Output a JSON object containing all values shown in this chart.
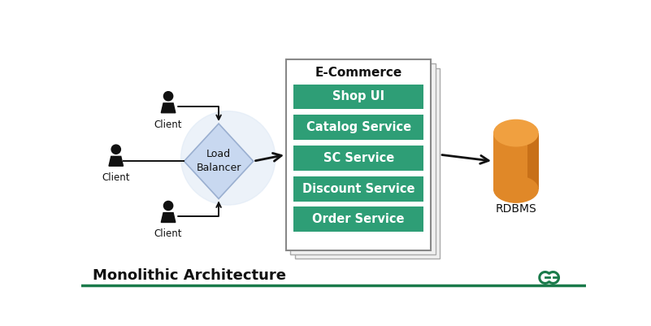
{
  "bg_color": "#ffffff",
  "service_bg": "#2e9e76",
  "lb_color": "#c8d8f0",
  "lb_edge": "#9aafd0",
  "rdbms_top": "#f0a040",
  "rdbms_body": "#e08828",
  "rdbms_side": "#c87018",
  "arrow_color": "#111111",
  "text_dark": "#111111",
  "text_white": "#ffffff",
  "services": [
    "Shop UI",
    "Catalog Service",
    "SC Service",
    "Discount Service",
    "Order Service"
  ],
  "title": "Monolithic Architecture",
  "ecommerce_label": "E-Commerce",
  "rdbms_label": "RDBMS",
  "lb_label": "Load\nBalancer",
  "client_label": "Client",
  "logo_color": "#1a7a4a",
  "bottom_line_color": "#1a7a4a"
}
